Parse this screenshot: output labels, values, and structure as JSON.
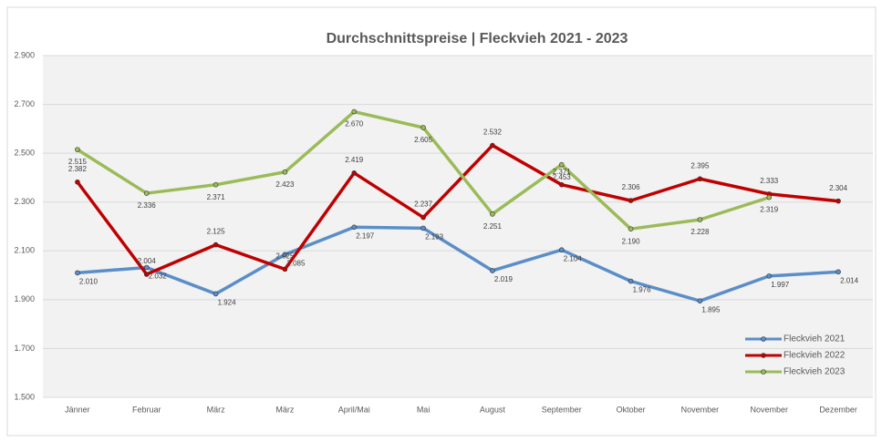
{
  "chart_data": {
    "type": "line",
    "title": "Durchschnittspreise | Fleckvieh  2021 - 2023",
    "categories": [
      "Jänner",
      "Februar",
      "März",
      "März",
      "April/Mai",
      "Mai",
      "August",
      "September",
      "Oktober",
      "November",
      "November",
      "Dezember"
    ],
    "series": [
      {
        "name": "Fleckvieh 2021",
        "color": "#5b8ec8",
        "values": [
          2.01,
          2.032,
          1.924,
          2.085,
          2.197,
          2.193,
          2.019,
          2.104,
          1.976,
          1.895,
          1.997,
          2.014
        ],
        "value_labels": [
          "2.010",
          "2.032",
          "1.924",
          "2.085",
          "2.197",
          "2.193",
          "2.019",
          "2.104",
          "1.976",
          "1.895",
          "1.997",
          "2.014"
        ]
      },
      {
        "name": "Fleckvieh 2022",
        "color": "#c00000",
        "values": [
          2.382,
          2.004,
          2.125,
          2.025,
          2.419,
          2.237,
          2.532,
          2.371,
          2.306,
          2.395,
          2.333,
          2.304
        ],
        "value_labels": [
          "2.382",
          "2.004",
          "2.125",
          "2.025",
          "2.419",
          "2.237",
          "2.532",
          "2.371",
          "2.306",
          "2.395",
          "2.333",
          "2.304"
        ]
      },
      {
        "name": "Fleckvieh 2023",
        "color": "#9bbb59",
        "values": [
          2.515,
          2.336,
          2.371,
          2.423,
          2.67,
          2.605,
          2.251,
          2.453,
          2.19,
          2.228,
          2.319,
          null
        ],
        "value_labels": [
          "2.515",
          "2.336",
          "2.371",
          "2.423",
          "2.670",
          "2.605",
          "2.251",
          "2.453",
          "2.190",
          "2.228",
          "2.319",
          null
        ]
      }
    ],
    "ylim": [
      1.5,
      2.9
    ],
    "yticks": [
      {
        "value": 1.5,
        "label": "1.500"
      },
      {
        "value": 1.7,
        "label": "1.700"
      },
      {
        "value": 1.9,
        "label": "1.900"
      },
      {
        "value": 2.1,
        "label": "2.100"
      },
      {
        "value": 2.3,
        "label": "2.300"
      },
      {
        "value": 2.5,
        "label": "2.500"
      },
      {
        "value": 2.7,
        "label": "2.700"
      },
      {
        "value": 2.9,
        "label": "2.900"
      }
    ],
    "grid": true,
    "legend": "lower right"
  }
}
